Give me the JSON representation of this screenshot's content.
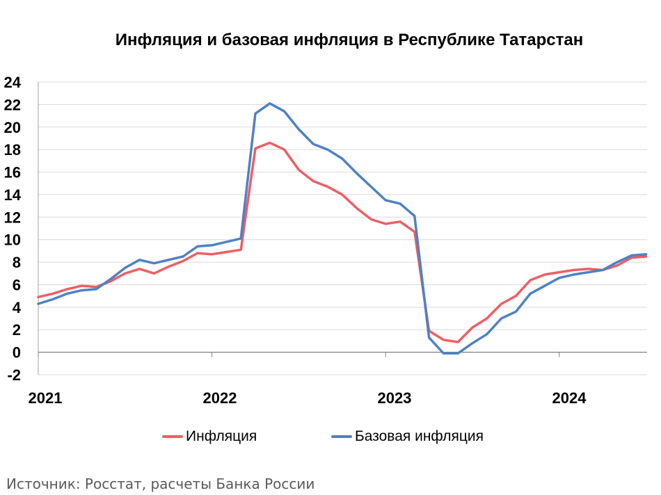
{
  "chart_data": {
    "type": "line",
    "title": "Инфляция и базовая инфляция в Республике Татарстан",
    "xlabel": "",
    "ylabel": "",
    "ylim": [
      -2,
      24
    ],
    "yticks": [
      "-2",
      "0",
      "2",
      "4",
      "6",
      "8",
      "10",
      "12",
      "14",
      "16",
      "18",
      "20",
      "22",
      "24"
    ],
    "xticks": [
      "2021",
      "2022",
      "2023",
      "2024"
    ],
    "grid": true,
    "legend_position": "bottom",
    "x": [
      "2021-01",
      "2021-02",
      "2021-03",
      "2021-04",
      "2021-05",
      "2021-06",
      "2021-07",
      "2021-08",
      "2021-09",
      "2021-10",
      "2021-11",
      "2021-12",
      "2022-01",
      "2022-02",
      "2022-03",
      "2022-04",
      "2022-05",
      "2022-06",
      "2022-07",
      "2022-08",
      "2022-09",
      "2022-10",
      "2022-11",
      "2022-12",
      "2023-01",
      "2023-02",
      "2023-03",
      "2023-04",
      "2023-05",
      "2023-06",
      "2023-07",
      "2023-08",
      "2023-09",
      "2023-10",
      "2023-11",
      "2023-12",
      "2024-01",
      "2024-02",
      "2024-03",
      "2024-04",
      "2024-05",
      "2024-06",
      "2024-07"
    ],
    "series": [
      {
        "name": "Инфляция",
        "color": "#EE5E65",
        "values": [
          4.9,
          5.2,
          5.6,
          5.9,
          5.8,
          6.3,
          7.0,
          7.4,
          7.0,
          7.6,
          8.1,
          8.8,
          8.7,
          8.9,
          9.1,
          18.1,
          18.6,
          18.0,
          16.2,
          15.2,
          14.7,
          14.0,
          12.8,
          11.8,
          11.4,
          11.6,
          10.7,
          1.9,
          1.1,
          0.9,
          2.2,
          3.0,
          4.3,
          5.0,
          6.4,
          6.9,
          7.1,
          7.3,
          7.4,
          7.3,
          7.7,
          8.4,
          8.5
        ]
      },
      {
        "name": "Базовая инфляция",
        "color": "#4F81C4",
        "values": [
          4.3,
          4.7,
          5.2,
          5.5,
          5.6,
          6.5,
          7.5,
          8.2,
          7.9,
          8.2,
          8.5,
          9.4,
          9.5,
          9.8,
          10.1,
          21.2,
          22.1,
          21.4,
          19.8,
          18.5,
          18.0,
          17.2,
          15.9,
          14.7,
          13.5,
          13.2,
          12.1,
          1.3,
          -0.1,
          -0.1,
          0.8,
          1.6,
          3.0,
          3.6,
          5.2,
          5.9,
          6.6,
          6.9,
          7.1,
          7.3,
          8.0,
          8.6,
          8.7
        ]
      }
    ]
  },
  "source_note": "Источник: Росстат, расчеты Банка России"
}
